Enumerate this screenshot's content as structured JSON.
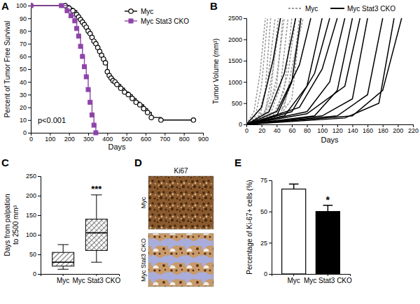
{
  "chart_data": [
    {
      "type": "line",
      "title": "A",
      "x_label": "Days",
      "y_label": "Percent of Tumor Free Survival",
      "xlim": [
        0,
        900
      ],
      "xticks": [
        0,
        100,
        200,
        300,
        400,
        500,
        600,
        700,
        800,
        900
      ],
      "ylim": [
        0,
        100
      ],
      "yticks": [
        0,
        10,
        20,
        30,
        40,
        50,
        60,
        70,
        80,
        90,
        100
      ],
      "legend": "top-right",
      "annotations": [
        {
          "text": "p<0.001"
        }
      ],
      "series": [
        {
          "name": "Myc",
          "color": "#000000",
          "marker": "circle",
          "line_style": "step",
          "x": [
            0,
            180,
            200,
            220,
            240,
            250,
            260,
            270,
            280,
            290,
            300,
            310,
            320,
            330,
            340,
            350,
            360,
            370,
            380,
            390,
            400,
            410,
            420,
            430,
            440,
            450,
            470,
            490,
            510,
            530,
            550,
            570,
            590,
            610,
            630,
            680,
            850
          ],
          "values": [
            100,
            100,
            98,
            96,
            93,
            91,
            89,
            87,
            85,
            83,
            80,
            78,
            75,
            72,
            70,
            67,
            64,
            61,
            58,
            55,
            48,
            45,
            43,
            41,
            40,
            38,
            35,
            32,
            30,
            27,
            24,
            22,
            19,
            16,
            12,
            10,
            10
          ]
        },
        {
          "name": "Myc Stat3 CKO",
          "color": "#8e44a8",
          "marker": "square",
          "line_style": "step",
          "x": [
            0,
            160,
            190,
            210,
            230,
            240,
            250,
            260,
            270,
            280,
            290,
            300,
            310,
            320,
            330,
            340
          ],
          "values": [
            100,
            100,
            96,
            92,
            88,
            82,
            76,
            68,
            60,
            52,
            44,
            34,
            24,
            14,
            6,
            0
          ]
        }
      ]
    },
    {
      "type": "line",
      "title": "B",
      "x_label": "Days",
      "y_label": "Tumor Volume (mm³)",
      "xlim": [
        0,
        220
      ],
      "xticks": [
        0,
        20,
        40,
        60,
        80,
        100,
        120,
        140,
        160,
        180,
        200,
        220
      ],
      "ylim": [
        0,
        2500
      ],
      "yticks": [
        0,
        500,
        1000,
        1500,
        2000,
        2500
      ],
      "legend": "top",
      "series": [
        {
          "name": "Myc",
          "color": "#9a9a9a",
          "line_style": "dashed",
          "lines": [
            {
              "x": [
                0,
                10,
                18,
                25
              ],
              "values": [
                0,
                300,
                1200,
                2500
              ]
            },
            {
              "x": [
                0,
                12,
                20,
                28
              ],
              "values": [
                0,
                200,
                900,
                2500
              ]
            },
            {
              "x": [
                0,
                15,
                25,
                32
              ],
              "values": [
                0,
                150,
                800,
                2500
              ]
            },
            {
              "x": [
                0,
                18,
                28,
                38
              ],
              "values": [
                0,
                200,
                1000,
                2500
              ]
            },
            {
              "x": [
                0,
                20,
                32,
                42
              ],
              "values": [
                0,
                100,
                700,
                2500
              ]
            },
            {
              "x": [
                0,
                20,
                40,
                48
              ],
              "values": [
                0,
                50,
                900,
                2500
              ]
            },
            {
              "x": [
                0,
                25,
                35,
                45
              ],
              "values": [
                0,
                300,
                1300,
                2500
              ]
            },
            {
              "x": [
                0,
                28,
                40,
                50
              ],
              "values": [
                0,
                200,
                1100,
                2500
              ]
            },
            {
              "x": [
                0,
                30,
                45,
                55
              ],
              "values": [
                0,
                150,
                900,
                2500
              ]
            },
            {
              "x": [
                0,
                35,
                50,
                60
              ],
              "values": [
                0,
                200,
                800,
                2500
              ]
            },
            {
              "x": [
                0,
                40,
                55,
                65
              ],
              "values": [
                0,
                300,
                1200,
                2500
              ]
            },
            {
              "x": [
                0,
                45,
                60,
                70
              ],
              "values": [
                0,
                250,
                1000,
                2500
              ]
            },
            {
              "x": [
                0,
                40,
                60,
                72
              ],
              "values": [
                0,
                100,
                600,
                2500
              ]
            },
            {
              "x": [
                0,
                50,
                62,
                75
              ],
              "values": [
                0,
                400,
                1500,
                2500
              ]
            }
          ]
        },
        {
          "name": "Myc Stat3 CKO",
          "color": "#000000",
          "line_style": "solid",
          "lines": [
            {
              "x": [
                0,
                20,
                35,
                45
              ],
              "values": [
                0,
                400,
                1500,
                2500
              ]
            },
            {
              "x": [
                0,
                30,
                50,
                65
              ],
              "values": [
                0,
                300,
                1200,
                2500
              ]
            },
            {
              "x": [
                0,
                40,
                60,
                72
              ],
              "values": [
                0,
                200,
                1000,
                2500
              ]
            },
            {
              "x": [
                0,
                40,
                70,
                85
              ],
              "values": [
                0,
                300,
                1400,
                2500
              ]
            },
            {
              "x": [
                0,
                50,
                80,
                100
              ],
              "values": [
                0,
                200,
                900,
                2500
              ]
            },
            {
              "x": [
                0,
                60,
                90,
                110
              ],
              "values": [
                0,
                300,
                1200,
                2500
              ]
            },
            {
              "x": [
                0,
                70,
                100,
                120
              ],
              "values": [
                0,
                400,
                1300,
                2500
              ]
            },
            {
              "x": [
                0,
                80,
                110,
                130
              ],
              "values": [
                0,
                300,
                1000,
                2500
              ]
            },
            {
              "x": [
                0,
                90,
                120,
                140
              ],
              "values": [
                0,
                200,
                800,
                2500
              ]
            },
            {
              "x": [
                0,
                80,
                130,
                150
              ],
              "values": [
                0,
                250,
                900,
                2500
              ]
            },
            {
              "x": [
                0,
                100,
                140,
                160
              ],
              "values": [
                0,
                200,
                600,
                2500
              ]
            },
            {
              "x": [
                0,
                120,
                160,
                180
              ],
              "values": [
                0,
                200,
                700,
                2500
              ]
            },
            {
              "x": [
                0,
                130,
                175,
                195
              ],
              "values": [
                0,
                150,
                500,
                2500
              ]
            },
            {
              "x": [
                0,
                140,
                180,
                205
              ],
              "values": [
                0,
                200,
                800,
                2500
              ]
            }
          ]
        }
      ]
    },
    {
      "type": "box",
      "title": "C",
      "y_label": [
        "Days from palpation",
        "to 2500 mm³"
      ],
      "categories": [
        "Myc",
        "Myc Stat3 CKO"
      ],
      "boxes": [
        {
          "min": 12,
          "q1": 20,
          "median": 30,
          "q3": 55,
          "max": 75
        },
        {
          "min": 30,
          "q1": 60,
          "median": 105,
          "q3": 140,
          "max": 202
        }
      ],
      "colors": [
        "#6e6e6e",
        "#6e6e6e"
      ],
      "ylim": [
        0,
        250
      ],
      "yticks": [
        0,
        50,
        100,
        150,
        200,
        250
      ],
      "annotations": [
        {
          "text": "***",
          "x": "Myc Stat3 CKO"
        }
      ]
    },
    {
      "type": "image",
      "title": "D",
      "subtitle": "Ki67",
      "categories": [
        "Myc",
        "Myc Stat3 CKO"
      ]
    },
    {
      "type": "bar",
      "title": "E",
      "y_label": "Percentage of Ki-67+ cells (%)",
      "categories": [
        "Myc",
        "Myc Stat3 CKO"
      ],
      "values": [
        68,
        50
      ],
      "errors": [
        4,
        5
      ],
      "colors": [
        "#ffffff",
        "#000000"
      ],
      "ylim": [
        0,
        75
      ],
      "yticks": [
        0,
        25,
        50,
        75
      ],
      "annotations": [
        {
          "text": "*",
          "x": "Myc Stat3 CKO"
        }
      ]
    }
  ]
}
